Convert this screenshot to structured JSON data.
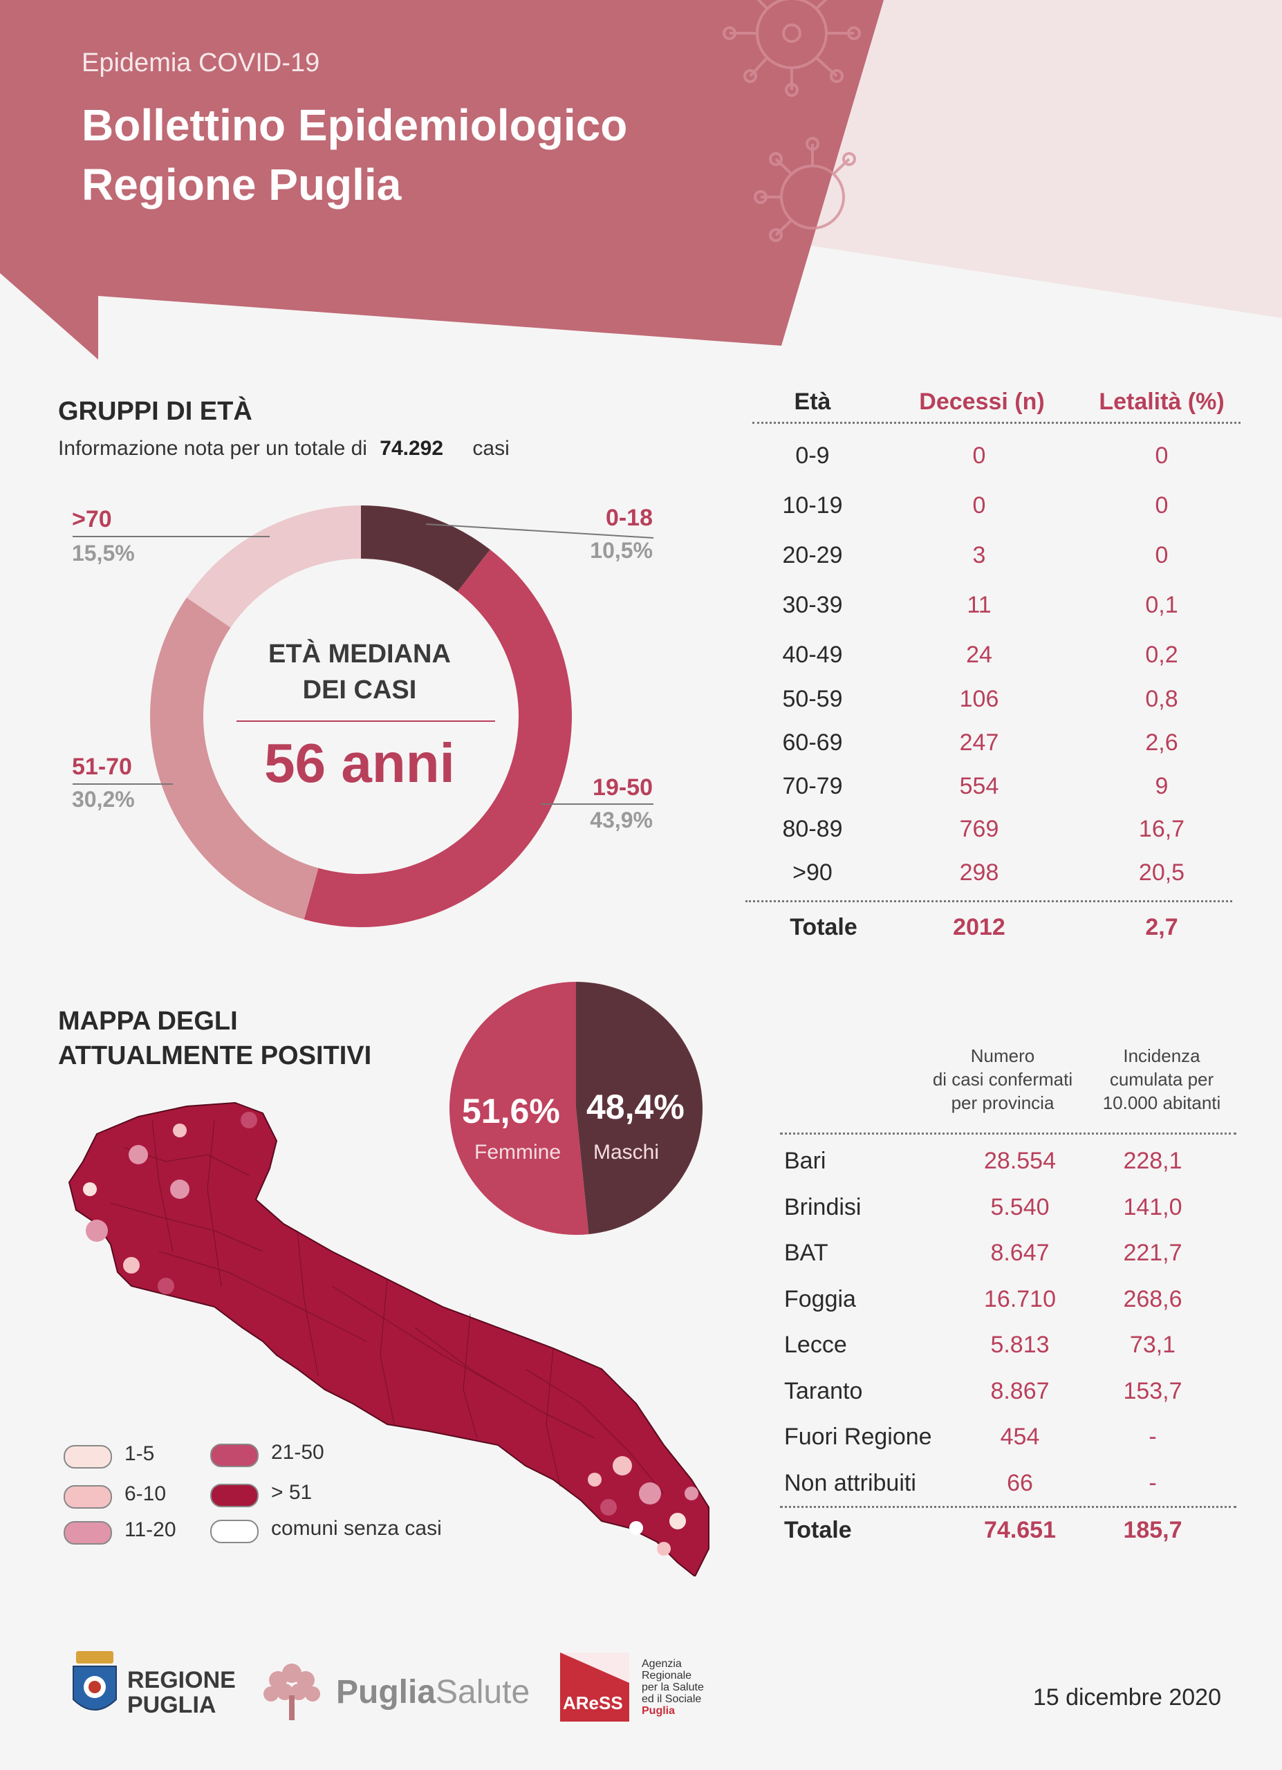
{
  "header": {
    "kicker": "Epidemia COVID-19",
    "title_line1": "Bollettino Epidemiologico",
    "title_line2": "Regione Puglia"
  },
  "age_groups": {
    "title": "GRUPPI DI ETÀ",
    "info_prefix": "Informazione nota per un totale di",
    "info_total": "74.292",
    "info_suffix": "casi",
    "median_title_line1": "ETÀ MEDIANA",
    "median_title_line2": "DEI CASI",
    "median_value": "56 anni"
  },
  "chart_data": [
    {
      "type": "pie",
      "title": "",
      "categories": [
        "0-18",
        "19-50",
        "51-70",
        ">70"
      ],
      "values": [
        10.5,
        43.9,
        30.2,
        15.5
      ],
      "labels": [
        "10,5%",
        "43,9%",
        "30,2%",
        "15,5%"
      ],
      "colors": [
        "#5d333b",
        "#c0435f",
        "#d4949a",
        "#ebc9cc"
      ],
      "donut": true
    },
    {
      "type": "pie",
      "title": "",
      "categories": [
        "Femmine",
        "Maschi"
      ],
      "values": [
        51.6,
        48.4
      ],
      "labels": [
        "51,6%",
        "48,4%"
      ],
      "colors": [
        "#c0435f",
        "#5d333b"
      ]
    }
  ],
  "deaths_table": {
    "headers": [
      "Età",
      "Decessi (n)",
      "Letalità (%)"
    ],
    "rows": [
      [
        "0-9",
        "0",
        "0"
      ],
      [
        "10-19",
        "0",
        "0"
      ],
      [
        "20-29",
        "3",
        "0"
      ],
      [
        "30-39",
        "11",
        "0,1"
      ],
      [
        "40-49",
        "24",
        "0,2"
      ],
      [
        "50-59",
        "106",
        "0,8"
      ],
      [
        "60-69",
        "247",
        "2,6"
      ],
      [
        "70-79",
        "554",
        "9"
      ],
      [
        "80-89",
        "769",
        "16,7"
      ],
      [
        ">90",
        "298",
        "20,5"
      ]
    ],
    "total": [
      "Totale",
      "2012",
      "2,7"
    ]
  },
  "map": {
    "title_line1": "MAPPA DEGLI",
    "title_line2": "ATTUALMENTE POSITIVI",
    "legend": [
      {
        "label": "1-5",
        "color": "#fae3df"
      },
      {
        "label": "6-10",
        "color": "#f5c2c4"
      },
      {
        "label": "11-20",
        "color": "#e095ab"
      },
      {
        "label": "21-50",
        "color": "#c34a6c"
      },
      {
        "label": "> 51",
        "color": "#a8183c"
      },
      {
        "label": "comuni senza casi",
        "color": "#ffffff"
      }
    ]
  },
  "province_table": {
    "header_cases": [
      "Numero",
      "di casi confermati",
      "per provincia"
    ],
    "header_incidence": [
      "Incidenza",
      "cumulata per",
      "10.000 abitanti"
    ],
    "rows": [
      [
        "Bari",
        "28.554",
        "228,1"
      ],
      [
        "Brindisi",
        "5.540",
        "141,0"
      ],
      [
        "BAT",
        "8.647",
        "221,7"
      ],
      [
        "Foggia",
        "16.710",
        "268,6"
      ],
      [
        "Lecce",
        "5.813",
        "73,1"
      ],
      [
        "Taranto",
        "8.867",
        "153,7"
      ],
      [
        "Fuori Regione",
        "454",
        "-"
      ],
      [
        "Non attribuiti",
        "66",
        "-"
      ]
    ],
    "total": [
      "Totale",
      "74.651",
      "185,7"
    ]
  },
  "footer": {
    "logo1_line1": "REGIONE",
    "logo1_line2": "PUGLIA",
    "logo2_a": "Puglia",
    "logo2_b": "Salute",
    "logo3_abbr": "AReSS",
    "logo3_lines": [
      "Agenzia",
      "Regionale",
      "per la Salute",
      "ed il Sociale",
      "Puglia"
    ],
    "date": "15 dicembre 2020"
  }
}
